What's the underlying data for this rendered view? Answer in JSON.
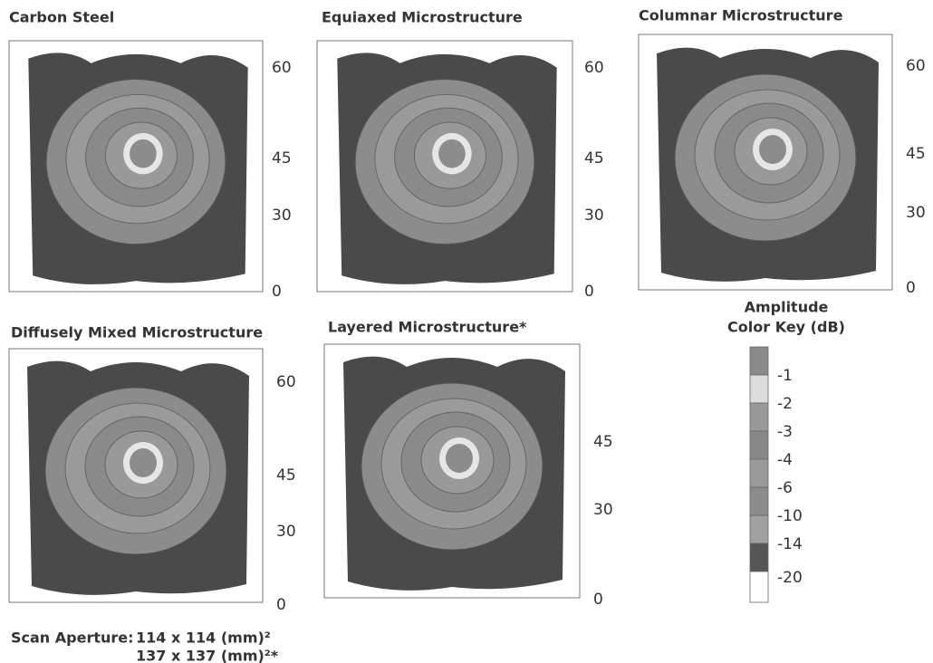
{
  "panels": [
    {
      "title": "Carbon Steel",
      "ticks": [
        "60",
        "45",
        "30",
        "0"
      ]
    },
    {
      "title": "Equiaxed Microstructure",
      "ticks": [
        "60",
        "45",
        "30",
        "0"
      ]
    },
    {
      "title": "Columnar Microstructure",
      "ticks": [
        "60",
        "45",
        "30",
        "0"
      ]
    },
    {
      "title": "Diffusely Mixed Microstructure",
      "ticks": [
        "60",
        "45",
        "30",
        "0"
      ]
    },
    {
      "title": "Layered Microstructure*",
      "ticks": [
        "45",
        "30",
        "0"
      ]
    }
  ],
  "color_key": {
    "title": [
      "Amplitude",
      "Color Key (dB)"
    ],
    "labels": [
      "-1",
      "-2",
      "-3",
      "-4",
      "-6",
      "-10",
      "-14",
      "-20"
    ]
  },
  "caption": {
    "label": "Scan Aperture:",
    "lines": [
      "114 x 114 (mm)²",
      "137 x 137 (mm)²*"
    ]
  }
}
